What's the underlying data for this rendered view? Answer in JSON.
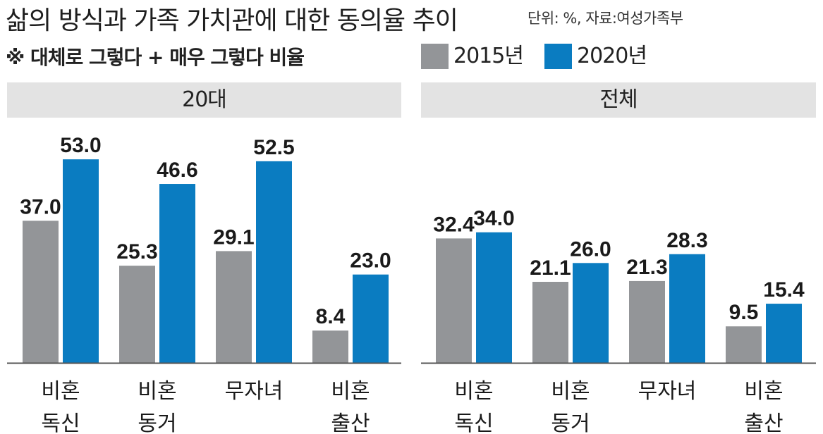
{
  "title": "삶의 방식과 가족 가치관에 대한 동의율 추이",
  "source": "단위: %, 자료:여성가족부",
  "note": "※ 대체로 그렇다 + 매우 그렇다 비율",
  "legend": [
    {
      "label": "2015년",
      "color": "#939598"
    },
    {
      "label": "2020년",
      "color": "#0a7cc1"
    }
  ],
  "chart_data": [
    {
      "type": "bar",
      "title": "20대",
      "categories": [
        [
          "비혼",
          "독신"
        ],
        [
          "비혼",
          "동거"
        ],
        [
          "무자녀"
        ],
        [
          "비혼",
          "출산"
        ]
      ],
      "series": [
        {
          "name": "2015년",
          "values": [
            37.0,
            25.3,
            29.1,
            8.4
          ],
          "labels": [
            "37.0",
            "25.3",
            "29.1",
            "8.4"
          ],
          "color": "#939598"
        },
        {
          "name": "2020년",
          "values": [
            53.0,
            46.6,
            52.5,
            23.0
          ],
          "labels": [
            "53.0",
            "46.6",
            "52.5",
            "23.0"
          ],
          "color": "#0a7cc1"
        }
      ],
      "ylim": [
        0,
        60
      ],
      "grid": false
    },
    {
      "type": "bar",
      "title": "전체",
      "categories": [
        [
          "비혼",
          "독신"
        ],
        [
          "비혼",
          "동거"
        ],
        [
          "무자녀"
        ],
        [
          "비혼",
          "출산"
        ]
      ],
      "series": [
        {
          "name": "2015년",
          "values": [
            32.4,
            21.1,
            21.3,
            9.5
          ],
          "labels": [
            "32.4",
            "21.1",
            "21.3",
            "9.5"
          ],
          "color": "#939598"
        },
        {
          "name": "2020년",
          "values": [
            34.0,
            26.0,
            28.3,
            15.4
          ],
          "labels": [
            "34.0",
            "26.0",
            "28.3",
            "15.4"
          ],
          "color": "#0a7cc1"
        }
      ],
      "ylim": [
        0,
        60
      ],
      "grid": false
    }
  ]
}
